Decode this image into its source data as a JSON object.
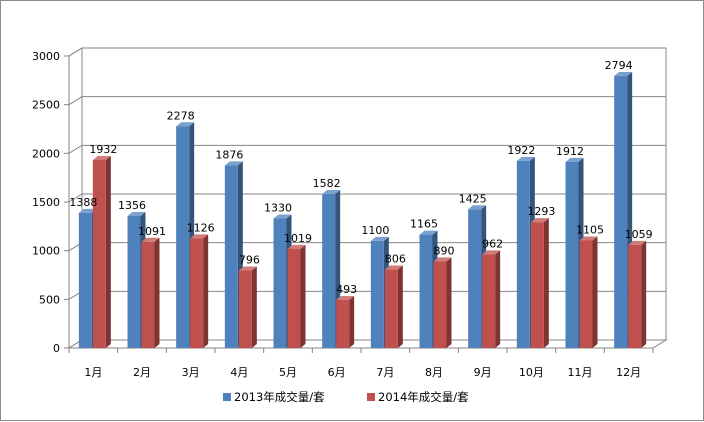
{
  "chart_data": {
    "type": "bar",
    "categories": [
      "1月",
      "2月",
      "3月",
      "4月",
      "5月",
      "6月",
      "7月",
      "8月",
      "9月",
      "10月",
      "11月",
      "12月"
    ],
    "series": [
      {
        "name": "2013年成交量/套",
        "values": [
          1388,
          1356,
          2278,
          1876,
          1330,
          1582,
          1100,
          1165,
          1425,
          1922,
          1912,
          2794
        ],
        "color": "#4f81bd"
      },
      {
        "name": "2014年成交量/套",
        "values": [
          1932,
          1091,
          1126,
          796,
          1019,
          493,
          806,
          890,
          962,
          1293,
          1105,
          1059
        ],
        "color": "#c0504d"
      }
    ],
    "ylim": [
      0,
      3000
    ],
    "yticks": [
      0,
      500,
      1000,
      1500,
      2000,
      2500,
      3000
    ],
    "grid": true,
    "legend_position": "bottom",
    "style": "3d-clustered-column"
  }
}
